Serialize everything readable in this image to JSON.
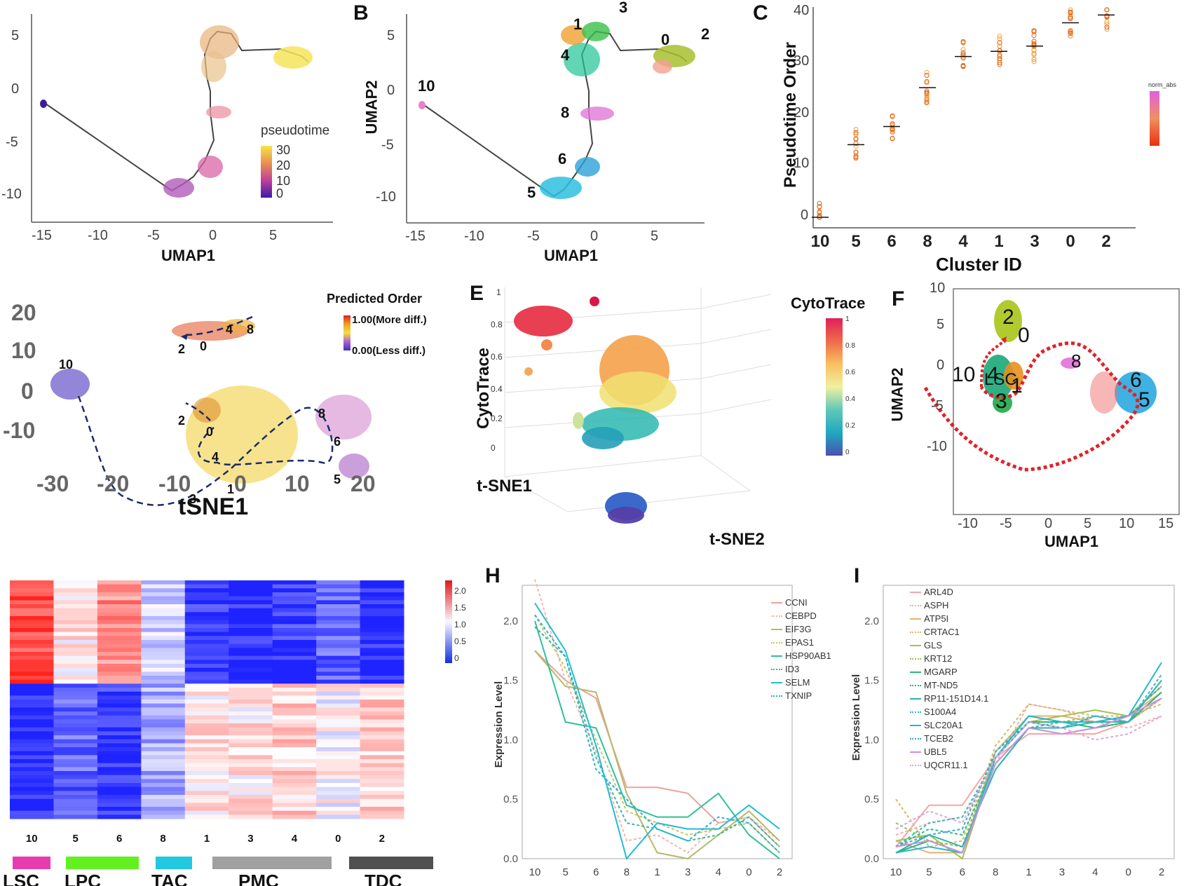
{
  "panels": {
    "A": {
      "label": "",
      "xlabel": "UMAP1",
      "ylabel": "",
      "xticks": [
        "-15",
        "-10",
        "-5",
        "0",
        "5"
      ],
      "yticks": [
        "5",
        "0",
        "-5",
        "-10"
      ],
      "legend_title": "pseudotime",
      "legend_ticks": [
        "30",
        "20",
        "10",
        "0"
      ]
    },
    "B": {
      "label": "B",
      "xlabel": "UMAP1",
      "ylabel": "UMAP2",
      "xticks": [
        "-15",
        "-10",
        "-5",
        "0",
        "5"
      ],
      "yticks": [
        "5",
        "0",
        "-5",
        "-10"
      ],
      "cluster_labels": [
        "3",
        "1",
        "4",
        "0",
        "2",
        "10",
        "8",
        "6",
        "5"
      ]
    },
    "C": {
      "label": "C",
      "xlabel": "Cluster ID",
      "ylabel": "Pseudotime Order",
      "categories": [
        "10",
        "5",
        "6",
        "8",
        "4",
        "1",
        "3",
        "0",
        "2"
      ],
      "yticks": [
        "40",
        "30",
        "20",
        "10",
        "0"
      ],
      "legend_title": "norm_abs"
    },
    "D": {
      "label": "",
      "xlabel": "tSNE1",
      "xticks": [
        "-30",
        "-20",
        "-10",
        "0",
        "10",
        "20"
      ],
      "yticks": [
        "20",
        "10",
        "0",
        "-10"
      ],
      "legend_title": "Predicted Order",
      "legend_high": "1.00(More diff.)",
      "legend_low": "0.00(Less diff.)",
      "cluster_labels": [
        "10",
        "2",
        "0",
        "4",
        "8",
        "2",
        "0",
        "4",
        "3",
        "1",
        "8",
        "6",
        "5"
      ]
    },
    "E": {
      "label": "E",
      "zlabel": "CytoTrace",
      "xlabel": "t-SNE1",
      "ylabel": "t-SNE2",
      "legend_title": "CytoTrace",
      "legend_ticks": [
        "1",
        "0.8",
        "0.6",
        "0.4",
        "0.2",
        "0"
      ],
      "zticks": [
        "1",
        "0.8",
        "0.6",
        "0.4",
        "0.2",
        "0"
      ]
    },
    "F": {
      "label": "F",
      "xlabel": "UMAP1",
      "ylabel": "UMAP2",
      "xticks": [
        "-10",
        "-5",
        "0",
        "5",
        "10",
        "15"
      ],
      "yticks": [
        "10",
        "5",
        "0",
        "-5",
        "-10"
      ],
      "annotations": [
        "10",
        "LSC",
        "2",
        "0",
        "4",
        "3",
        "1",
        "8",
        "6",
        "5"
      ]
    },
    "G": {
      "label": "",
      "columns": [
        "10",
        "5",
        "6",
        "8",
        "1",
        "3",
        "4",
        "0",
        "2"
      ],
      "scale_ticks": [
        "2.0",
        "1.5",
        "1.0",
        "0.5",
        "0"
      ],
      "stage_labels": [
        "LSC",
        "LPC",
        "TAC",
        "PMC",
        "TDC"
      ]
    },
    "H": {
      "label": "H",
      "ylabel": "Expression Level",
      "yticks": [
        "2.0",
        "1.5",
        "1.0",
        "0.5",
        "0.0"
      ],
      "xticks": [
        "10",
        "5",
        "6",
        "8",
        "1",
        "3",
        "4",
        "0",
        "2"
      ],
      "genes": [
        "CCNI",
        "CEBPD",
        "EIF3G",
        "EPAS1",
        "HSP90AB1",
        "ID3",
        "SELM",
        "TXNIP"
      ]
    },
    "I": {
      "label": "I",
      "ylabel": "Expression Level",
      "yticks": [
        "2.0",
        "1.5",
        "1.0",
        "0.5",
        "0.0"
      ],
      "xticks": [
        "10",
        "5",
        "6",
        "8",
        "1",
        "3",
        "4",
        "0",
        "2"
      ],
      "genes": [
        "ARL4D",
        "ASPH",
        "ATP5I",
        "CRTAC1",
        "GLS",
        "KRT12",
        "MGARP",
        "MT-ND5",
        "RP11-151D14.1",
        "S100A4",
        "SLC20A1",
        "TCEB2",
        "UBL5",
        "UQCR11.1"
      ]
    }
  },
  "chart_data": [
    {
      "type": "scatter",
      "panel": "C",
      "xlabel": "Cluster ID",
      "ylabel": "Pseudotime Order",
      "categories": [
        "10",
        "5",
        "6",
        "8",
        "4",
        "1",
        "3",
        "0",
        "2"
      ],
      "medians": [
        0,
        14,
        17.5,
        25,
        31,
        32,
        33,
        37.5,
        39
      ],
      "ylim": [
        0,
        40
      ]
    },
    {
      "type": "line",
      "panel": "H",
      "ylabel": "Expression Level",
      "categories": [
        "10",
        "5",
        "6",
        "8",
        "1",
        "3",
        "4",
        "0",
        "2"
      ],
      "ylim": [
        0,
        2.3
      ],
      "series": [
        {
          "name": "CCNI",
          "color": "#e8a39b",
          "dash": false,
          "values": [
            1.75,
            1.5,
            1.35,
            0.6,
            0.6,
            0.55,
            0.3,
            0.35,
            0.1
          ]
        },
        {
          "name": "CEBPD",
          "color": "#f0b8a8",
          "dash": true,
          "values": [
            2.35,
            1.5,
            0.9,
            0.15,
            0.2,
            0.05,
            0.3,
            0.35,
            0.15
          ]
        },
        {
          "name": "EIF3G",
          "color": "#b7b86a",
          "dash": false,
          "values": [
            1.75,
            1.45,
            1.4,
            0.55,
            0.05,
            0.0,
            0.2,
            0.4,
            0.15
          ]
        },
        {
          "name": "EPAS1",
          "color": "#c9c46a",
          "dash": true,
          "values": [
            2.05,
            1.6,
            1.0,
            0.4,
            0.3,
            0.2,
            0.25,
            0.3,
            0.05
          ]
        },
        {
          "name": "HSP90AB1",
          "color": "#2ec09a",
          "dash": false,
          "values": [
            2.0,
            1.15,
            1.1,
            0.45,
            0.35,
            0.35,
            0.55,
            0.2,
            0.0
          ]
        },
        {
          "name": "ID3",
          "color": "#36b8a6",
          "dash": true,
          "values": [
            1.95,
            1.7,
            0.85,
            0.3,
            0.25,
            0.15,
            0.2,
            0.35,
            0.1
          ]
        },
        {
          "name": "SELM",
          "color": "#22bcd4",
          "dash": false,
          "values": [
            2.15,
            1.75,
            0.95,
            0.0,
            0.3,
            0.25,
            0.25,
            0.45,
            0.25
          ]
        },
        {
          "name": "TXNIP",
          "color": "#27b0d8",
          "dash": true,
          "values": [
            2.05,
            1.7,
            0.75,
            0.5,
            0.25,
            0.15,
            0.35,
            0.3,
            0.05
          ]
        }
      ]
    },
    {
      "type": "line",
      "panel": "I",
      "ylabel": "Expression Level",
      "categories": [
        "10",
        "5",
        "6",
        "8",
        "1",
        "3",
        "4",
        "0",
        "2"
      ],
      "ylim": [
        0,
        2.3
      ],
      "series": [
        {
          "name": "ARL4D",
          "color": "#f4a6a6",
          "dash": false,
          "values": [
            0.1,
            0.45,
            0.45,
            0.85,
            1.05,
            1.05,
            1.05,
            1.15,
            1.35
          ]
        },
        {
          "name": "ASPH",
          "color": "#f1b0b0",
          "dash": true,
          "values": [
            0.2,
            0.3,
            0.35,
            0.8,
            1.3,
            1.25,
            1.15,
            1.1,
            1.2
          ]
        },
        {
          "name": "ATP5I",
          "color": "#e4b070",
          "dash": false,
          "values": [
            0.15,
            0.05,
            0.05,
            0.9,
            1.2,
            1.2,
            1.15,
            1.2,
            1.4
          ]
        },
        {
          "name": "CRTAC1",
          "color": "#d7bb6a",
          "dash": true,
          "values": [
            0.5,
            0.1,
            0.15,
            0.95,
            1.3,
            1.25,
            1.2,
            1.2,
            1.3
          ]
        },
        {
          "name": "GLS",
          "color": "#a8c050",
          "dash": false,
          "values": [
            0.15,
            0.2,
            0.0,
            0.85,
            1.15,
            1.2,
            1.25,
            1.2,
            1.45
          ]
        },
        {
          "name": "KRT12",
          "color": "#8fc25a",
          "dash": true,
          "values": [
            0.3,
            0.15,
            0.1,
            0.9,
            1.2,
            1.15,
            1.2,
            1.15,
            1.35
          ]
        },
        {
          "name": "MGARP",
          "color": "#2fb67a",
          "dash": false,
          "values": [
            0.05,
            0.15,
            0.05,
            0.85,
            1.15,
            1.15,
            1.1,
            1.15,
            1.4
          ]
        },
        {
          "name": "MT-ND5",
          "color": "#34b890",
          "dash": true,
          "values": [
            0.1,
            0.25,
            0.2,
            0.8,
            1.1,
            1.15,
            1.15,
            1.2,
            1.45
          ]
        },
        {
          "name": "RP11-151D14.1",
          "color": "#2cb6a6",
          "dash": false,
          "values": [
            0.05,
            0.2,
            0.1,
            0.75,
            1.1,
            1.1,
            1.15,
            1.15,
            1.5
          ]
        },
        {
          "name": "S100A4",
          "color": "#35bdbc",
          "dash": true,
          "values": [
            0.1,
            0.3,
            0.35,
            0.85,
            1.15,
            1.1,
            1.2,
            1.15,
            1.55
          ]
        },
        {
          "name": "SLC20A1",
          "color": "#25b8d0",
          "dash": false,
          "values": [
            0.05,
            0.1,
            0.05,
            0.85,
            1.2,
            1.15,
            1.15,
            1.2,
            1.65
          ]
        },
        {
          "name": "TCEB2",
          "color": "#3aa6dc",
          "dash": true,
          "values": [
            0.1,
            0.2,
            0.25,
            0.9,
            1.15,
            1.1,
            1.2,
            1.15,
            1.5
          ]
        },
        {
          "name": "UBL5",
          "color": "#cc8ee0",
          "dash": false,
          "values": [
            0.1,
            0.15,
            0.05,
            0.8,
            1.1,
            1.05,
            1.1,
            1.2,
            1.35
          ]
        },
        {
          "name": "UQCR11.1",
          "color": "#e0a6d8",
          "dash": true,
          "values": [
            0.25,
            0.4,
            0.3,
            0.85,
            1.15,
            1.1,
            1.0,
            1.05,
            1.2
          ]
        }
      ]
    }
  ]
}
